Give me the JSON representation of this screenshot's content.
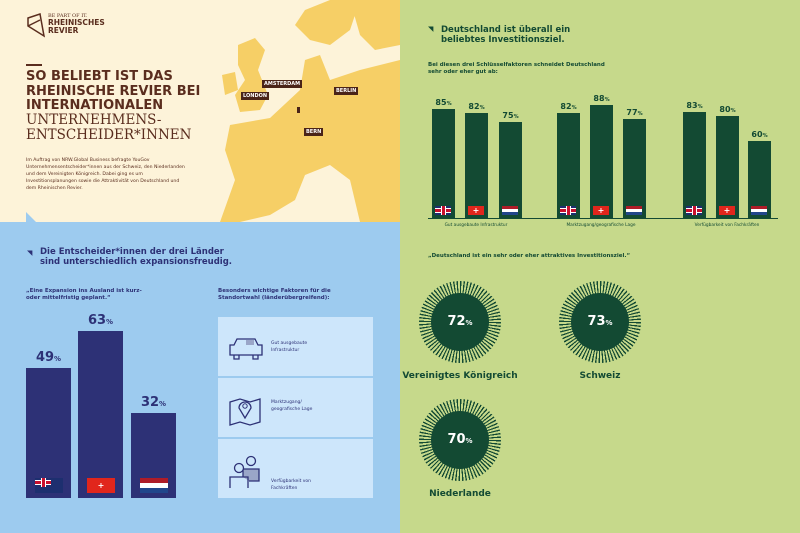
{
  "logo": {
    "tagline": "BE PART OF IT.",
    "name": "RHEINISCHES REVIER"
  },
  "header": {
    "title_bold": "SO BELIEBT IST DAS RHEINISCHE REVIER BEI INTERNATIONALEN",
    "title_light": "UNTERNEHMENS-ENTSCHEIDER*INNEN",
    "intro": "Im Auftrag von NRW.Global Business befragte YouGov Unternehmensentscheider*innen aus der Schweiz, den Niederlanden und dem Vereinigten Königreich. Dabei ging es um Investitionsplanungen sowie die Attraktivität von Deutschland und dem Rheinischen Revier."
  },
  "map": {
    "cities": [
      "AMSTERDAM",
      "LONDON",
      "BERLIN",
      "BERN"
    ]
  },
  "expansion": {
    "heading": "Die Entscheider*innen der drei Länder sind unterschiedlich expansionsfreudig.",
    "subtitle": "„Eine Expansion ins Ausland ist kurz- oder mittelfristig geplant.“",
    "bars": [
      {
        "country": "UK",
        "value": 49,
        "label": "49"
      },
      {
        "country": "CH",
        "value": 63,
        "label": "63"
      },
      {
        "country": "NL",
        "value": 32,
        "label": "32"
      }
    ],
    "unit": "%"
  },
  "factors": {
    "heading": "Besonders wichtige Faktoren für die Standortwahl (länderübergreifend):",
    "items": [
      {
        "icon": "car-icon",
        "label": "Gut ausgebaute Infrastruktur"
      },
      {
        "icon": "map-pin-icon",
        "label": "Marktzugang/ geografische Lage"
      },
      {
        "icon": "people-icon",
        "label": "Verfügbarkeit von Fachkräften"
      }
    ]
  },
  "germany": {
    "heading": "Deutschland ist überall ein beliebtes Investitionsziel.",
    "subtitle": "Bei diesen drei Schlüsselfaktoren schneidet Deutschland sehr oder eher gut ab:",
    "groups": [
      {
        "label": "Gut ausgebaute Infrastruktur",
        "values": [
          {
            "country": "UK",
            "value": 85,
            "label": "85"
          },
          {
            "country": "CH",
            "value": 82,
            "label": "82"
          },
          {
            "country": "NL",
            "value": 75,
            "label": "75"
          }
        ]
      },
      {
        "label": "Marktzugang/geografische Lage",
        "values": [
          {
            "country": "UK",
            "value": 82,
            "label": "82"
          },
          {
            "country": "CH",
            "value": 88,
            "label": "88"
          },
          {
            "country": "NL",
            "value": 77,
            "label": "77"
          }
        ]
      },
      {
        "label": "Verfügbarkeit von Fachkräften",
        "values": [
          {
            "country": "UK",
            "value": 83,
            "label": "83"
          },
          {
            "country": "CH",
            "value": 80,
            "label": "80"
          },
          {
            "country": "NL",
            "value": 60,
            "label": "60"
          }
        ]
      }
    ]
  },
  "attractive": {
    "heading": "„Deutschland ist ein sehr oder eher attraktives Investitionsziel.“",
    "items": [
      {
        "country": "Vereinigtes Königreich",
        "value": "72"
      },
      {
        "country": "Schweiz",
        "value": "73"
      },
      {
        "country": "Niederlande",
        "value": "70"
      }
    ]
  },
  "colors": {
    "cream": "#fdf3d9",
    "brown": "#5a2d1e",
    "blue": "#9dcbef",
    "navy": "#2d3176",
    "green": "#c6d98b",
    "darkgreen": "#134a33"
  }
}
